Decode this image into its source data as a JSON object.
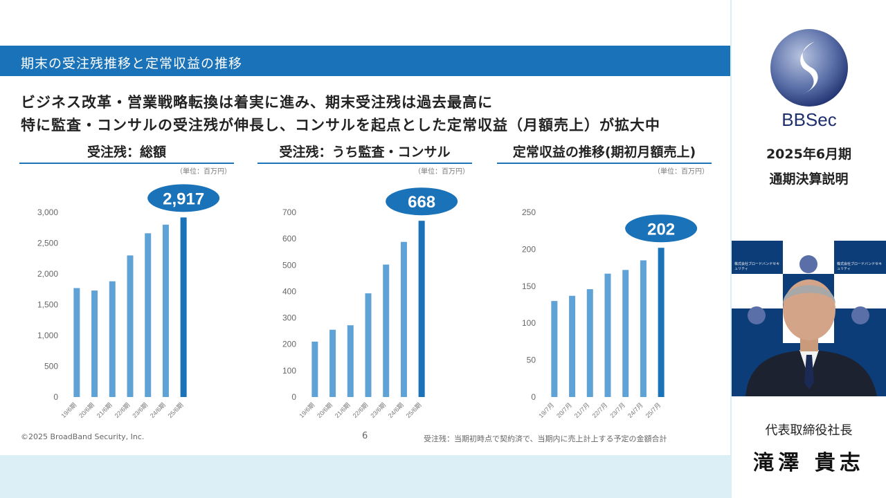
{
  "slide_title": "期末の受注残推移と定常収益の推移",
  "headline_1": "ビジネス改革・営業戦略転換は着実に進み、期末受注残は過去最高に",
  "headline_2": "特に監査・コンサルの受注残が伸長し、コンサルを起点とした定常収益（月額売上）が拡大中",
  "footer_copyright": "©2025 BroadBand Security, Inc.",
  "page_number": "6",
  "footnote": "受注残：当期初時点で契約済で、当期内に売上計上する予定の金額合計",
  "right_panel": {
    "logo_text": "BBSec",
    "event_line_1": "2025年6月期",
    "event_line_2": "通期決算説明",
    "speaker_role": "代表取締役社長",
    "speaker_name": "滝澤 貴志",
    "video_sign_text": "株式会社ブロードバンドセキュリティ"
  },
  "colors": {
    "accent": "#1a72b8",
    "bar_light": "#5fa3d6",
    "bar_highlight": "#1a72b8",
    "callout": "#1a72b8"
  },
  "chart_data": [
    {
      "type": "bar",
      "title": "受注残：総額",
      "unit": "（単位：百万円）",
      "categories": [
        "19/6期",
        "20/6期",
        "21/6期",
        "22/6期",
        "23/6期",
        "24/6期",
        "25/6期"
      ],
      "values": [
        1770,
        1730,
        1880,
        2300,
        2660,
        2800,
        2917
      ],
      "ylim": [
        0,
        3000
      ],
      "yticks": [
        0,
        500,
        1000,
        1500,
        2000,
        2500,
        3000
      ],
      "ytick_labels": [
        "0",
        "500",
        "1,000",
        "1,500",
        "2,000",
        "2,500",
        "3,000"
      ],
      "callout": "2,917"
    },
    {
      "type": "bar",
      "title": "受注残：うち監査・コンサル",
      "unit": "（単位：百万円）",
      "categories": [
        "19/6期",
        "20/6期",
        "21/6期",
        "22/6期",
        "23/6期",
        "24/6期",
        "25/6期"
      ],
      "values": [
        210,
        255,
        272,
        393,
        502,
        588,
        668
      ],
      "ylim": [
        0,
        700
      ],
      "yticks": [
        0,
        100,
        200,
        300,
        400,
        500,
        600,
        700
      ],
      "ytick_labels": [
        "0",
        "100",
        "200",
        "300",
        "400",
        "500",
        "600",
        "700"
      ],
      "callout": "668"
    },
    {
      "type": "bar",
      "title": "定常収益の推移(期初月額売上)",
      "unit": "（単位：百万円）",
      "categories": [
        "19/7月",
        "20/7月",
        "21/7月",
        "22/7月",
        "23/7月",
        "24/7月",
        "25/7月"
      ],
      "values": [
        130,
        137,
        146,
        167,
        172,
        185,
        202
      ],
      "ylim": [
        0,
        250
      ],
      "yticks": [
        0,
        50,
        100,
        150,
        200,
        250
      ],
      "ytick_labels": [
        "0",
        "50",
        "100",
        "150",
        "200",
        "250"
      ],
      "callout": "202"
    }
  ]
}
